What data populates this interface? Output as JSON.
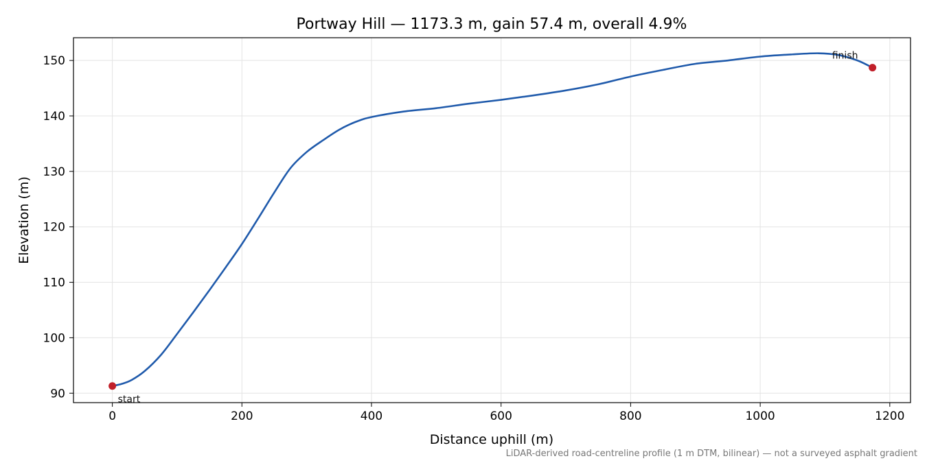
{
  "chart_data": {
    "type": "line",
    "title": "Portway Hill — 1173.3 m, gain 57.4 m, overall 4.9%",
    "xlabel": "Distance uphill (m)",
    "ylabel": "Elevation (m)",
    "footnote": "LiDAR-derived road-centreline profile (1 m DTM, bilinear) — not a surveyed asphalt gradient",
    "xlim": [
      -60,
      1232
    ],
    "ylim": [
      88.3,
      154.1
    ],
    "xticks": [
      0,
      200,
      400,
      600,
      800,
      1000,
      1200
    ],
    "yticks": [
      90,
      100,
      110,
      120,
      130,
      140,
      150
    ],
    "grid": true,
    "line_color": "#1f5aab",
    "marker_color": "#c1202a",
    "series": [
      {
        "x": [
          0,
          15,
          30,
          50,
          75,
          100,
          125,
          150,
          175,
          200,
          225,
          250,
          275,
          300,
          325,
          350,
          375,
          400,
          450,
          500,
          550,
          600,
          650,
          700,
          750,
          800,
          850,
          900,
          950,
          1000,
          1050,
          1090,
          1120,
          1150,
          1173.3
        ],
        "y": [
          91.3,
          91.7,
          92.4,
          94.0,
          96.9,
          100.7,
          104.6,
          108.6,
          112.7,
          116.9,
          121.5,
          126.2,
          130.6,
          133.5,
          135.6,
          137.5,
          138.9,
          139.8,
          140.8,
          141.4,
          142.2,
          142.9,
          143.7,
          144.6,
          145.7,
          147.1,
          148.3,
          149.4,
          150.0,
          150.7,
          151.1,
          151.3,
          151.0,
          150.0,
          148.7
        ]
      }
    ],
    "points": [
      {
        "label": "start",
        "x": 0,
        "y": 91.3
      },
      {
        "label": "finish",
        "x": 1173.3,
        "y": 148.7
      }
    ]
  }
}
